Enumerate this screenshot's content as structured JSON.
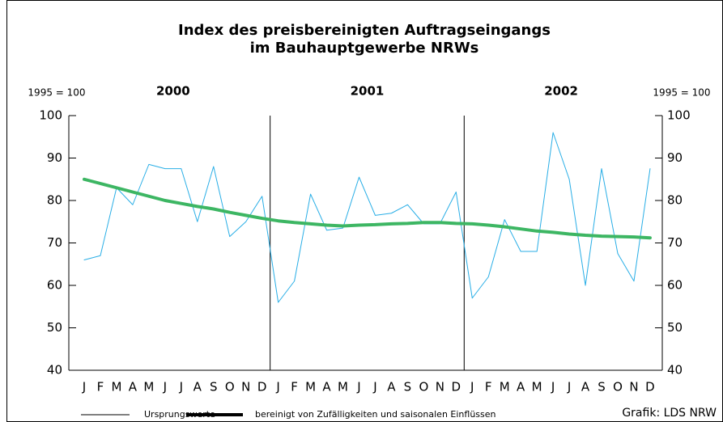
{
  "chart_data": {
    "type": "line",
    "title": [
      "Index des preisbereinigten Auftragseingangs",
      "im Bauhauptgewerbe NRWs"
    ],
    "ylabel": "1995 = 100",
    "y2label": "1995 = 100",
    "years": [
      "2000",
      "2001",
      "2002"
    ],
    "categories": [
      "J",
      "F",
      "M",
      "A",
      "M",
      "J",
      "J",
      "A",
      "S",
      "O",
      "N",
      "D",
      "J",
      "F",
      "M",
      "A",
      "M",
      "J",
      "J",
      "A",
      "S",
      "O",
      "N",
      "D",
      "J",
      "F",
      "M",
      "A",
      "M",
      "J",
      "J",
      "A",
      "S",
      "O",
      "N",
      "D"
    ],
    "series": [
      {
        "name": "Ursprungswerte",
        "color": "#29aee6",
        "width": 1,
        "values": [
          66,
          67,
          83,
          79,
          88.5,
          87.5,
          87.5,
          75,
          88,
          71.5,
          75,
          81,
          56,
          61,
          81.5,
          73,
          73.5,
          85.5,
          76.5,
          77,
          79,
          74.5,
          74.5,
          82,
          57,
          62,
          75.5,
          68,
          68,
          96,
          85,
          60,
          87.5,
          67.5,
          61,
          87.5
        ]
      },
      {
        "name": "bereinigt von Zufälligkeiten und saisonalen Einflüssen",
        "color": "#3db663",
        "width": 4,
        "values": [
          85,
          84,
          83,
          82,
          81,
          80,
          79.3,
          78.6,
          78,
          77.2,
          76.5,
          75.8,
          75.2,
          74.8,
          74.5,
          74.2,
          74,
          74.2,
          74.3,
          74.5,
          74.6,
          74.8,
          74.8,
          74.6,
          74.5,
          74.2,
          73.8,
          73.3,
          72.8,
          72.5,
          72.1,
          71.8,
          71.6,
          71.5,
          71.4,
          71.2
        ]
      }
    ],
    "ylim": [
      40,
      100
    ],
    "yticks": [
      40,
      50,
      60,
      70,
      80,
      90,
      100
    ],
    "y2lim": [
      40,
      100
    ],
    "y2ticks": [
      40,
      50,
      60,
      70,
      80,
      90,
      100
    ],
    "source": "Grafik: LDS NRW"
  }
}
